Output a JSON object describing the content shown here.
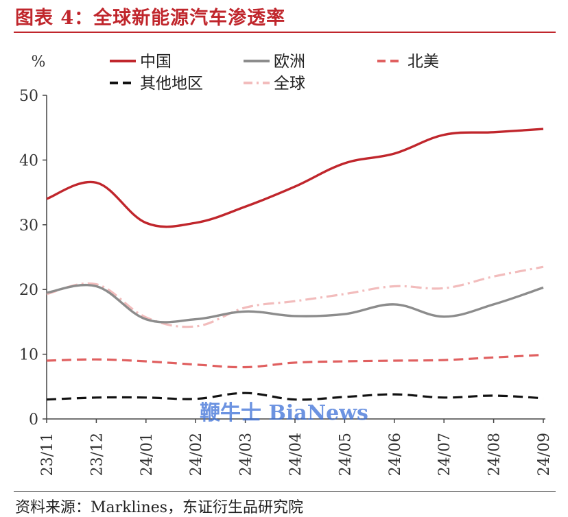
{
  "figure": {
    "title": "图表 4：全球新能源汽车渗透率",
    "source": "资料来源：Marklines，东证衍生品研究院",
    "watermark": "鞭牛士 BiaNews"
  },
  "chart_data": {
    "type": "line",
    "title": "全球新能源汽车渗透率",
    "ylabel": "%",
    "xlabel": "",
    "ylim": [
      0,
      50
    ],
    "yticks": [
      "0",
      "10",
      "20",
      "30",
      "40",
      "50"
    ],
    "categories": [
      "23/11",
      "23/12",
      "24/01",
      "24/02",
      "24/03",
      "24/04",
      "24/05",
      "24/06",
      "24/07",
      "24/08",
      "24/09"
    ],
    "legend_position": "top",
    "series": [
      {
        "name": "中国",
        "values": [
          34.0,
          36.5,
          30.3,
          30.3,
          32.8,
          35.9,
          39.5,
          41.0,
          43.9,
          44.3,
          44.8
        ],
        "color": "#c0262c",
        "style": "solid"
      },
      {
        "name": "欧洲",
        "values": [
          19.5,
          20.5,
          15.4,
          15.4,
          16.6,
          15.9,
          16.2,
          17.7,
          15.8,
          17.7,
          20.3
        ],
        "color": "#8c8c8c",
        "style": "solid"
      },
      {
        "name": "北美",
        "values": [
          9.0,
          9.2,
          8.9,
          8.4,
          8.0,
          8.7,
          8.9,
          9.0,
          9.1,
          9.5,
          9.9
        ],
        "color": "#e06060",
        "style": "dash"
      },
      {
        "name": "其他地区",
        "values": [
          3.0,
          3.3,
          3.3,
          3.1,
          4.0,
          3.0,
          3.4,
          3.8,
          3.3,
          3.6,
          3.2
        ],
        "color": "#111111",
        "style": "dash"
      },
      {
        "name": "全球",
        "values": [
          19.3,
          20.8,
          15.7,
          14.3,
          17.2,
          18.2,
          19.3,
          20.5,
          20.2,
          22.0,
          23.5
        ],
        "color": "#f2bcbc",
        "style": "dashdot"
      }
    ]
  }
}
